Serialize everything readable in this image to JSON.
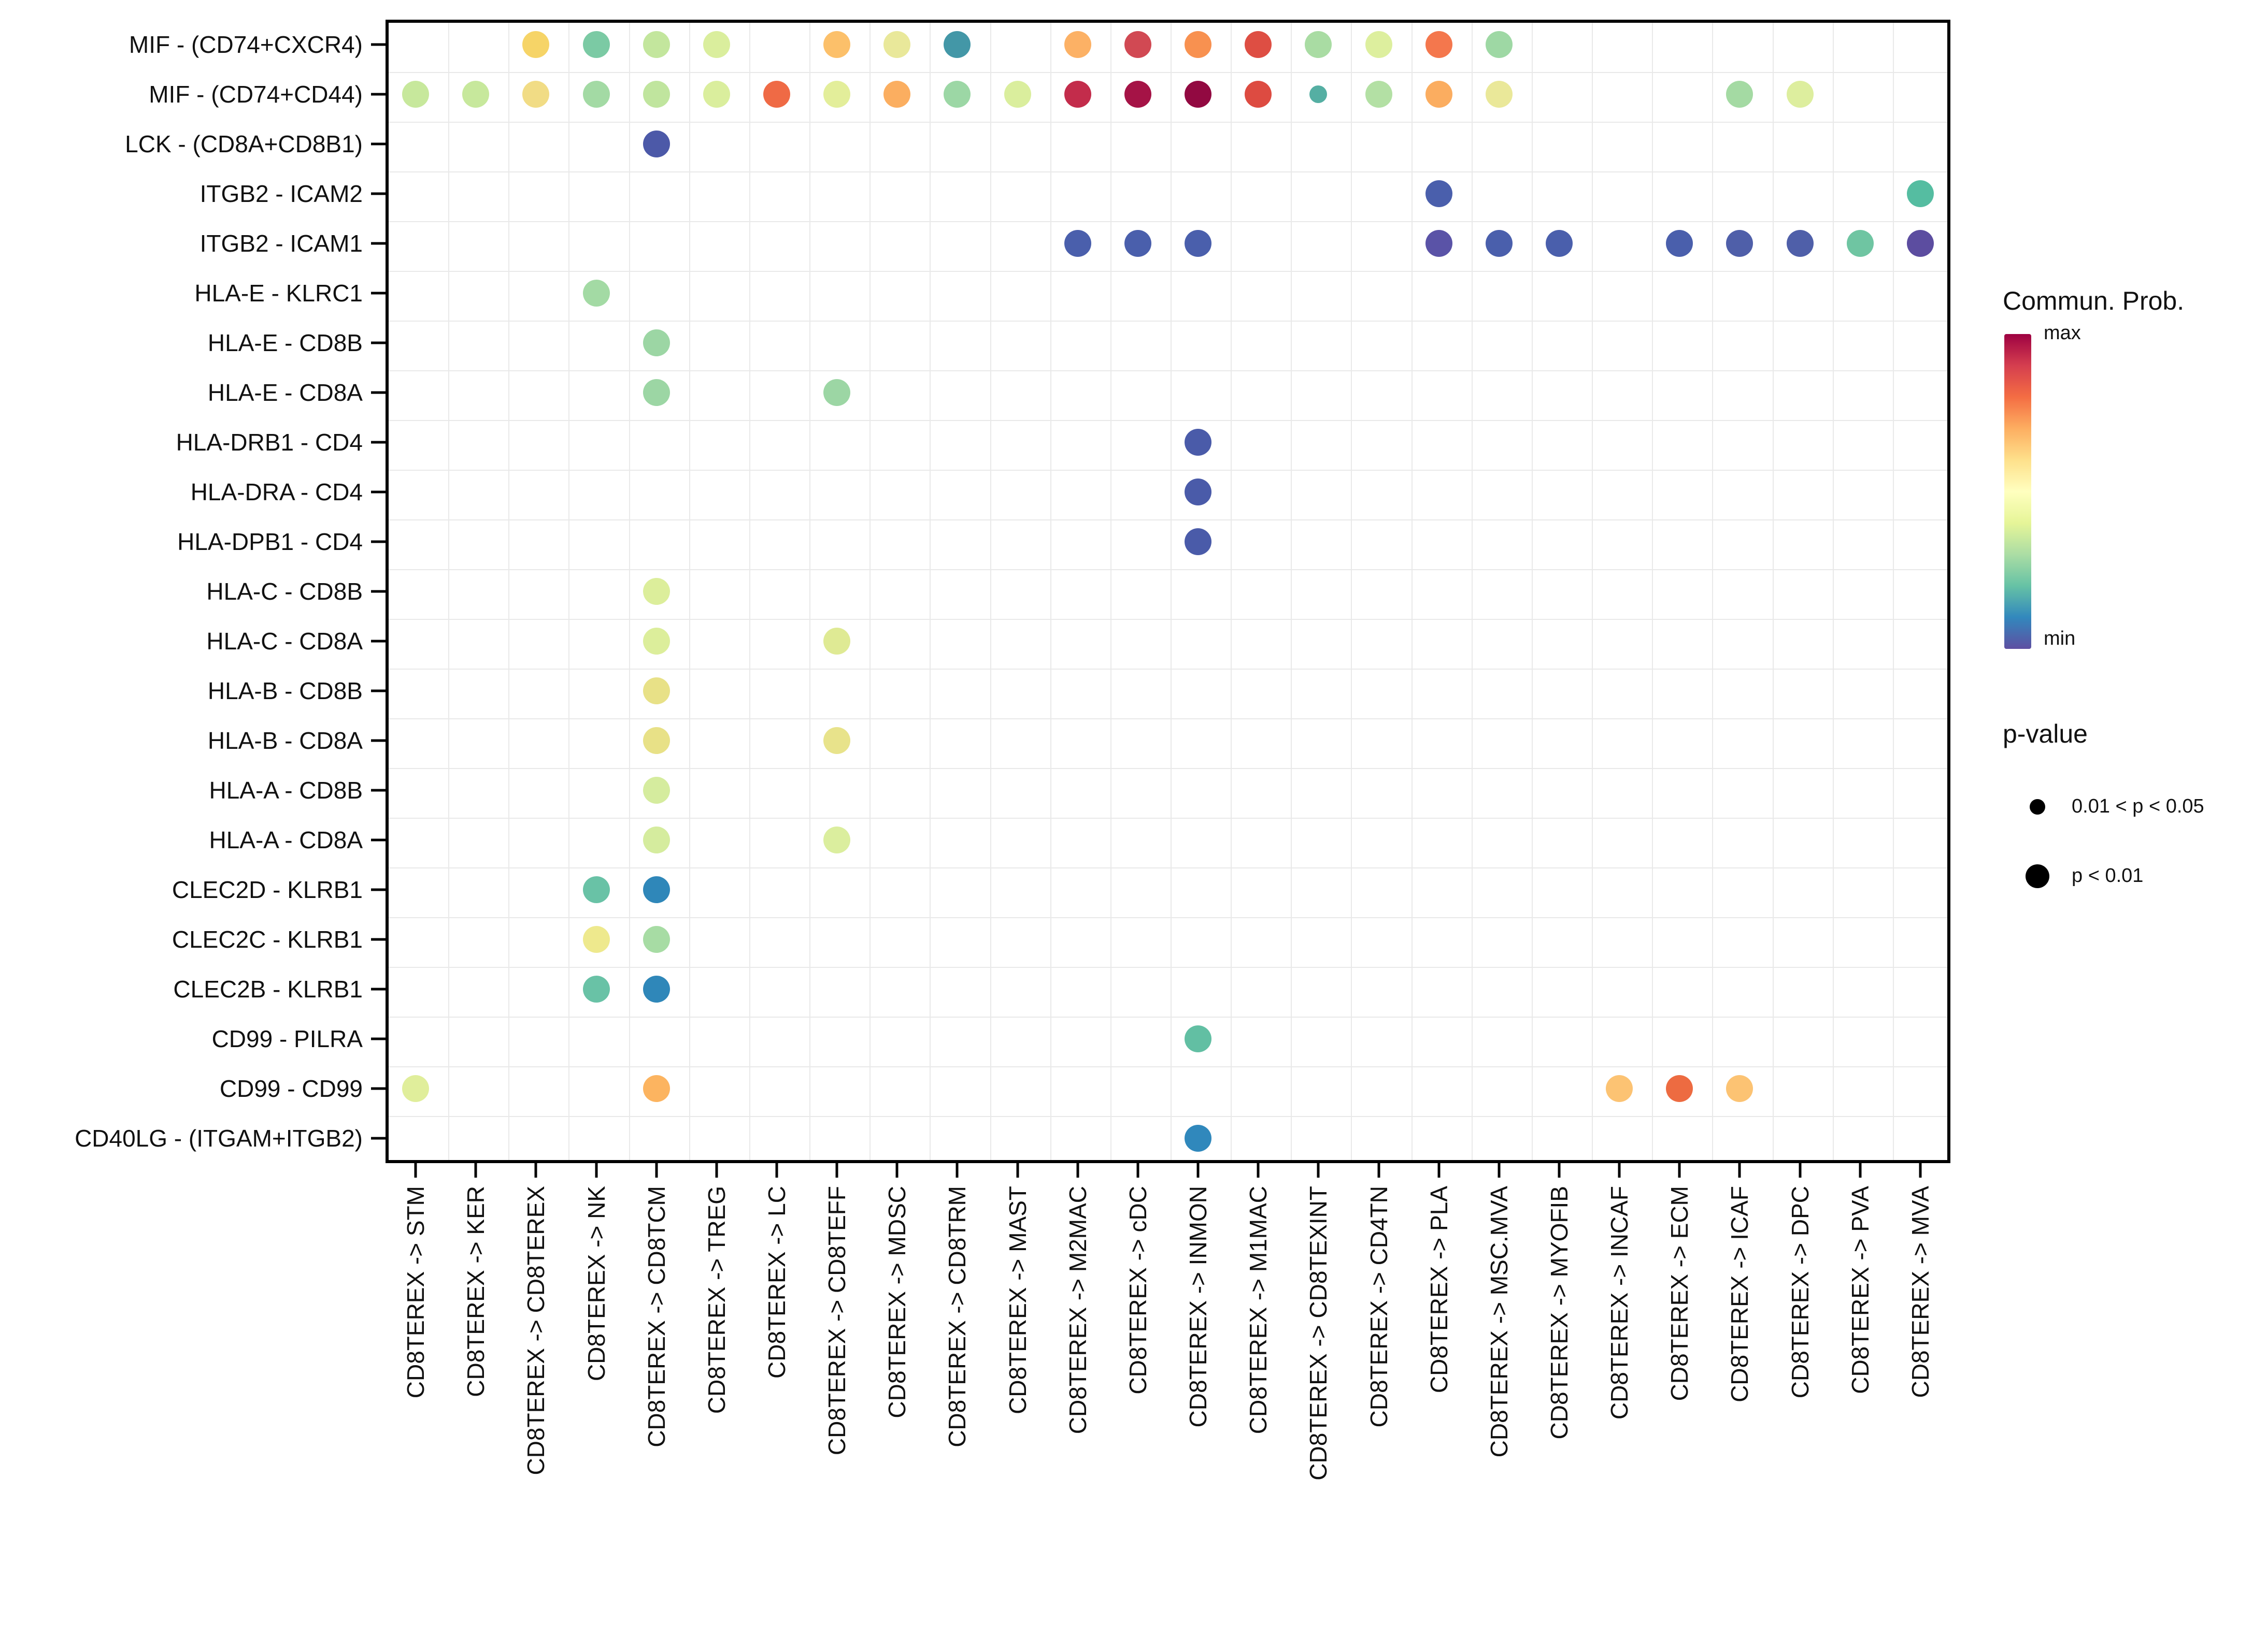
{
  "chart_data": {
    "type": "scatter",
    "title": "",
    "xlabel": "",
    "ylabel": "",
    "grid": true,
    "legend_position": "right",
    "rows": [
      "MIF - (CD74+CXCR4)",
      "MIF - (CD74+CD44)",
      "LCK - (CD8A+CD8B1)",
      "ITGB2 - ICAM2",
      "ITGB2 - ICAM1",
      "HLA-E - KLRC1",
      "HLA-E - CD8B",
      "HLA-E - CD8A",
      "HLA-DRB1 - CD4",
      "HLA-DRA - CD4",
      "HLA-DPB1 - CD4",
      "HLA-C - CD8B",
      "HLA-C - CD8A",
      "HLA-B - CD8B",
      "HLA-B - CD8A",
      "HLA-A - CD8B",
      "HLA-A - CD8A",
      "CLEC2D - KLRB1",
      "CLEC2C - KLRB1",
      "CLEC2B - KLRB1",
      "CD99 - PILRA",
      "CD99 - CD99",
      "CD40LG - (ITGAM+ITGB2)"
    ],
    "columns": [
      "CD8TEREX -> STM",
      "CD8TEREX -> KER",
      "CD8TEREX -> CD8TEREX",
      "CD8TEREX -> NK",
      "CD8TEREX -> CD8TCM",
      "CD8TEREX -> TREG",
      "CD8TEREX -> LC",
      "CD8TEREX -> CD8TEFF",
      "CD8TEREX -> MDSC",
      "CD8TEREX -> CD8TRM",
      "CD8TEREX -> MAST",
      "CD8TEREX -> M2MAC",
      "CD8TEREX -> cDC",
      "CD8TEREX -> INMON",
      "CD8TEREX -> M1MAC",
      "CD8TEREX -> CD8TEXINT",
      "CD8TEREX -> CD4TN",
      "CD8TEREX -> PLA",
      "CD8TEREX -> MSC.MVA",
      "CD8TEREX -> MYOFIB",
      "CD8TEREX -> INCAF",
      "CD8TEREX -> ECM",
      "CD8TEREX -> ICAF",
      "CD8TEREX -> DPC",
      "CD8TEREX -> PVA",
      "CD8TEREX -> MVA"
    ],
    "dots": [
      {
        "r": 0,
        "c": 2,
        "color": "#F6D467",
        "p": "p < 0.01"
      },
      {
        "r": 0,
        "c": 3,
        "color": "#7BCAA4",
        "p": "p < 0.01"
      },
      {
        "r": 0,
        "c": 4,
        "color": "#C3E69D",
        "p": "p < 0.01"
      },
      {
        "r": 0,
        "c": 5,
        "color": "#DAEE9D",
        "p": "p < 0.01"
      },
      {
        "r": 0,
        "c": 7,
        "color": "#FCC06A",
        "p": "p < 0.01"
      },
      {
        "r": 0,
        "c": 8,
        "color": "#E9E89A",
        "p": "p < 0.01"
      },
      {
        "r": 0,
        "c": 9,
        "color": "#4397A7",
        "p": "p < 0.01"
      },
      {
        "r": 0,
        "c": 11,
        "color": "#FCB165",
        "p": "p < 0.01"
      },
      {
        "r": 0,
        "c": 12,
        "color": "#D14953",
        "p": "p < 0.01"
      },
      {
        "r": 0,
        "c": 13,
        "color": "#F89150",
        "p": "p < 0.01"
      },
      {
        "r": 0,
        "c": 14,
        "color": "#DE4E43",
        "p": "p < 0.01"
      },
      {
        "r": 0,
        "c": 15,
        "color": "#A9DCA3",
        "p": "p < 0.01"
      },
      {
        "r": 0,
        "c": 16,
        "color": "#DDEF9E",
        "p": "p < 0.01"
      },
      {
        "r": 0,
        "c": 17,
        "color": "#F4774D",
        "p": "p < 0.01"
      },
      {
        "r": 0,
        "c": 18,
        "color": "#9ED8A4",
        "p": "p < 0.01"
      },
      {
        "r": 1,
        "c": 0,
        "color": "#C7E89C",
        "p": "p < 0.01"
      },
      {
        "r": 1,
        "c": 1,
        "color": "#C7E89C",
        "p": "p < 0.01"
      },
      {
        "r": 1,
        "c": 2,
        "color": "#F1DC85",
        "p": "p < 0.01"
      },
      {
        "r": 1,
        "c": 3,
        "color": "#A3DAA4",
        "p": "p < 0.01"
      },
      {
        "r": 1,
        "c": 4,
        "color": "#C0E59E",
        "p": "p < 0.01"
      },
      {
        "r": 1,
        "c": 5,
        "color": "#DAEE9D",
        "p": "p < 0.01"
      },
      {
        "r": 1,
        "c": 6,
        "color": "#EF6A45",
        "p": "p < 0.01"
      },
      {
        "r": 1,
        "c": 7,
        "color": "#E3EE9A",
        "p": "p < 0.01"
      },
      {
        "r": 1,
        "c": 8,
        "color": "#FBAE60",
        "p": "p < 0.01"
      },
      {
        "r": 1,
        "c": 9,
        "color": "#9CD7A5",
        "p": "p < 0.01"
      },
      {
        "r": 1,
        "c": 10,
        "color": "#DAEE9D",
        "p": "p < 0.01"
      },
      {
        "r": 1,
        "c": 11,
        "color": "#C32C4B",
        "p": "p < 0.01"
      },
      {
        "r": 1,
        "c": 12,
        "color": "#A51346",
        "p": "p < 0.01"
      },
      {
        "r": 1,
        "c": 13,
        "color": "#920941",
        "p": "p < 0.01"
      },
      {
        "r": 1,
        "c": 14,
        "color": "#DD4B41",
        "p": "p < 0.01"
      },
      {
        "r": 1,
        "c": 15,
        "color": "#55AFA3",
        "p": "0.01 < p < 0.05"
      },
      {
        "r": 1,
        "c": 16,
        "color": "#B3E0A4",
        "p": "p < 0.01"
      },
      {
        "r": 1,
        "c": 17,
        "color": "#FBAD60",
        "p": "p < 0.01"
      },
      {
        "r": 1,
        "c": 18,
        "color": "#EAE899",
        "p": "p < 0.01"
      },
      {
        "r": 1,
        "c": 22,
        "color": "#A4DAA3",
        "p": "p < 0.01"
      },
      {
        "r": 1,
        "c": 23,
        "color": "#DDEE9E",
        "p": "p < 0.01"
      },
      {
        "r": 2,
        "c": 4,
        "color": "#4C59A8",
        "p": "p < 0.01"
      },
      {
        "r": 3,
        "c": 17,
        "color": "#4A5FAC",
        "p": "p < 0.01"
      },
      {
        "r": 3,
        "c": 25,
        "color": "#55BDA1",
        "p": "p < 0.01"
      },
      {
        "r": 4,
        "c": 11,
        "color": "#4A5FAC",
        "p": "p < 0.01"
      },
      {
        "r": 4,
        "c": 12,
        "color": "#4A5FAC",
        "p": "p < 0.01"
      },
      {
        "r": 4,
        "c": 13,
        "color": "#4A5FAC",
        "p": "p < 0.01"
      },
      {
        "r": 4,
        "c": 17,
        "color": "#5A53A7",
        "p": "p < 0.01"
      },
      {
        "r": 4,
        "c": 18,
        "color": "#4A5FAC",
        "p": "p < 0.01"
      },
      {
        "r": 4,
        "c": 19,
        "color": "#4A5FAC",
        "p": "p < 0.01"
      },
      {
        "r": 4,
        "c": 21,
        "color": "#4A5FAC",
        "p": "p < 0.01"
      },
      {
        "r": 4,
        "c": 22,
        "color": "#4F5FA9",
        "p": "p < 0.01"
      },
      {
        "r": 4,
        "c": 23,
        "color": "#4F5FA9",
        "p": "p < 0.01"
      },
      {
        "r": 4,
        "c": 24,
        "color": "#6FC5A2",
        "p": "p < 0.01"
      },
      {
        "r": 4,
        "c": 25,
        "color": "#5C4DA0",
        "p": "p < 0.01"
      },
      {
        "r": 5,
        "c": 3,
        "color": "#A3DAA4",
        "p": "p < 0.01"
      },
      {
        "r": 6,
        "c": 4,
        "color": "#9CD6A4",
        "p": "p < 0.01"
      },
      {
        "r": 7,
        "c": 4,
        "color": "#9CD6A4",
        "p": "p < 0.01"
      },
      {
        "r": 7,
        "c": 7,
        "color": "#9CD6A4",
        "p": "p < 0.01"
      },
      {
        "r": 8,
        "c": 13,
        "color": "#4A5BA9",
        "p": "p < 0.01"
      },
      {
        "r": 9,
        "c": 13,
        "color": "#4A5BA9",
        "p": "p < 0.01"
      },
      {
        "r": 10,
        "c": 13,
        "color": "#4A5BA9",
        "p": "p < 0.01"
      },
      {
        "r": 11,
        "c": 4,
        "color": "#DCEE9B",
        "p": "p < 0.01"
      },
      {
        "r": 12,
        "c": 4,
        "color": "#DCEE9B",
        "p": "p < 0.01"
      },
      {
        "r": 12,
        "c": 7,
        "color": "#DFEA94",
        "p": "p < 0.01"
      },
      {
        "r": 13,
        "c": 4,
        "color": "#E8E187",
        "p": "p < 0.01"
      },
      {
        "r": 14,
        "c": 4,
        "color": "#E8E187",
        "p": "p < 0.01"
      },
      {
        "r": 14,
        "c": 7,
        "color": "#E8E38B",
        "p": "p < 0.01"
      },
      {
        "r": 15,
        "c": 4,
        "color": "#D5EC9E",
        "p": "p < 0.01"
      },
      {
        "r": 16,
        "c": 4,
        "color": "#D5EC9E",
        "p": "p < 0.01"
      },
      {
        "r": 16,
        "c": 7,
        "color": "#DBEE9E",
        "p": "p < 0.01"
      },
      {
        "r": 17,
        "c": 3,
        "color": "#69C2A6",
        "p": "p < 0.01"
      },
      {
        "r": 17,
        "c": 4,
        "color": "#2F87B9",
        "p": "p < 0.01"
      },
      {
        "r": 18,
        "c": 3,
        "color": "#EEE98D",
        "p": "p < 0.01"
      },
      {
        "r": 18,
        "c": 4,
        "color": "#A7DCA4",
        "p": "p < 0.01"
      },
      {
        "r": 19,
        "c": 3,
        "color": "#69C2A6",
        "p": "p < 0.01"
      },
      {
        "r": 19,
        "c": 4,
        "color": "#2F87B9",
        "p": "p < 0.01"
      },
      {
        "r": 20,
        "c": 13,
        "color": "#62BFA3",
        "p": "p < 0.01"
      },
      {
        "r": 21,
        "c": 0,
        "color": "#E0EE9B",
        "p": "p < 0.01"
      },
      {
        "r": 21,
        "c": 4,
        "color": "#FCB460",
        "p": "p < 0.01"
      },
      {
        "r": 21,
        "c": 20,
        "color": "#FCC373",
        "p": "p < 0.01"
      },
      {
        "r": 21,
        "c": 21,
        "color": "#ED6B41",
        "p": "p < 0.01"
      },
      {
        "r": 21,
        "c": 22,
        "color": "#FCC373",
        "p": "p < 0.01"
      },
      {
        "r": 22,
        "c": 13,
        "color": "#3088BC",
        "p": "p < 0.01"
      }
    ],
    "legend": {
      "title": "Commun. Prob.",
      "max_label": "max",
      "min_label": "min",
      "gradient_top_to_bottom": [
        "#9E0142",
        "#D53E4F",
        "#F46D43",
        "#FDAE61",
        "#FEE08B",
        "#FFFFBF",
        "#E6F598",
        "#ABDDA4",
        "#66C2A5",
        "#3288BD",
        "#5E4FA2"
      ],
      "pvalue_title": "p-value",
      "pvalue_items": [
        {
          "label": "0.01 < p < 0.05",
          "size": "small"
        },
        {
          "label": "p < 0.01",
          "size": "large"
        }
      ]
    }
  }
}
